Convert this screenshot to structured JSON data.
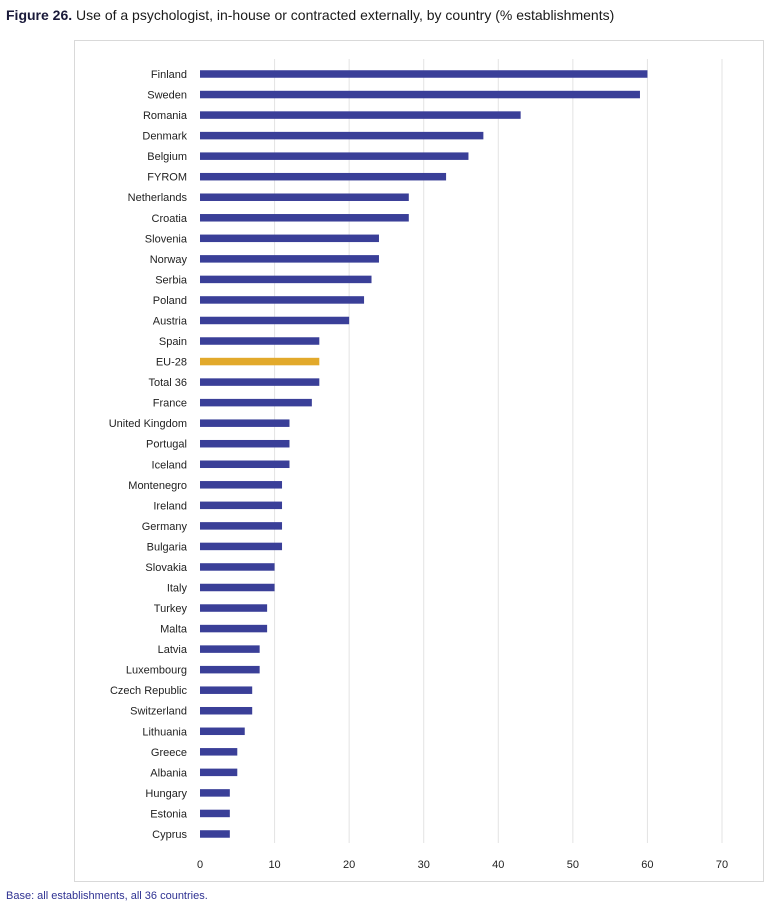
{
  "figure": {
    "title_lead": "Figure 26.",
    "title_rest": " Use of a psychologist, in-house or contracted externally, by country (% establishments)",
    "base_note": "Base: all establishments, all 36 countries."
  },
  "colors": {
    "bar": "#3a3f98",
    "highlight": "#e2a92b",
    "grid": "#e3e3e3",
    "text": "#222222",
    "note": "#2e3192"
  },
  "chart_data": {
    "type": "bar",
    "orientation": "horizontal",
    "categories": [
      "Finland",
      "Sweden",
      "Romania",
      "Denmark",
      "Belgium",
      "FYROM",
      "Netherlands",
      "Croatia",
      "Slovenia",
      "Norway",
      "Serbia",
      "Poland",
      "Austria",
      "Spain",
      "EU-28",
      "Total 36",
      "France",
      "United Kingdom",
      "Portugal",
      "Iceland",
      "Montenegro",
      "Ireland",
      "Germany",
      "Bulgaria",
      "Slovakia",
      "Italy",
      "Turkey",
      "Malta",
      "Latvia",
      "Luxembourg",
      "Czech Republic",
      "Switzerland",
      "Lithuania",
      "Greece",
      "Albania",
      "Hungary",
      "Estonia",
      "Cyprus"
    ],
    "values": [
      60,
      59,
      43,
      38,
      36,
      33,
      28,
      28,
      24,
      24,
      23,
      22,
      20,
      16,
      16,
      16,
      15,
      12,
      12,
      12,
      11,
      11,
      11,
      11,
      10,
      10,
      9,
      9,
      8,
      8,
      7,
      7,
      6,
      5,
      5,
      4,
      4,
      4
    ],
    "highlight_category": "EU-28",
    "xlim": [
      0,
      70
    ],
    "xticks": [
      0,
      10,
      20,
      30,
      40,
      50,
      60,
      70
    ],
    "grid": "vertical",
    "legend": "none"
  }
}
